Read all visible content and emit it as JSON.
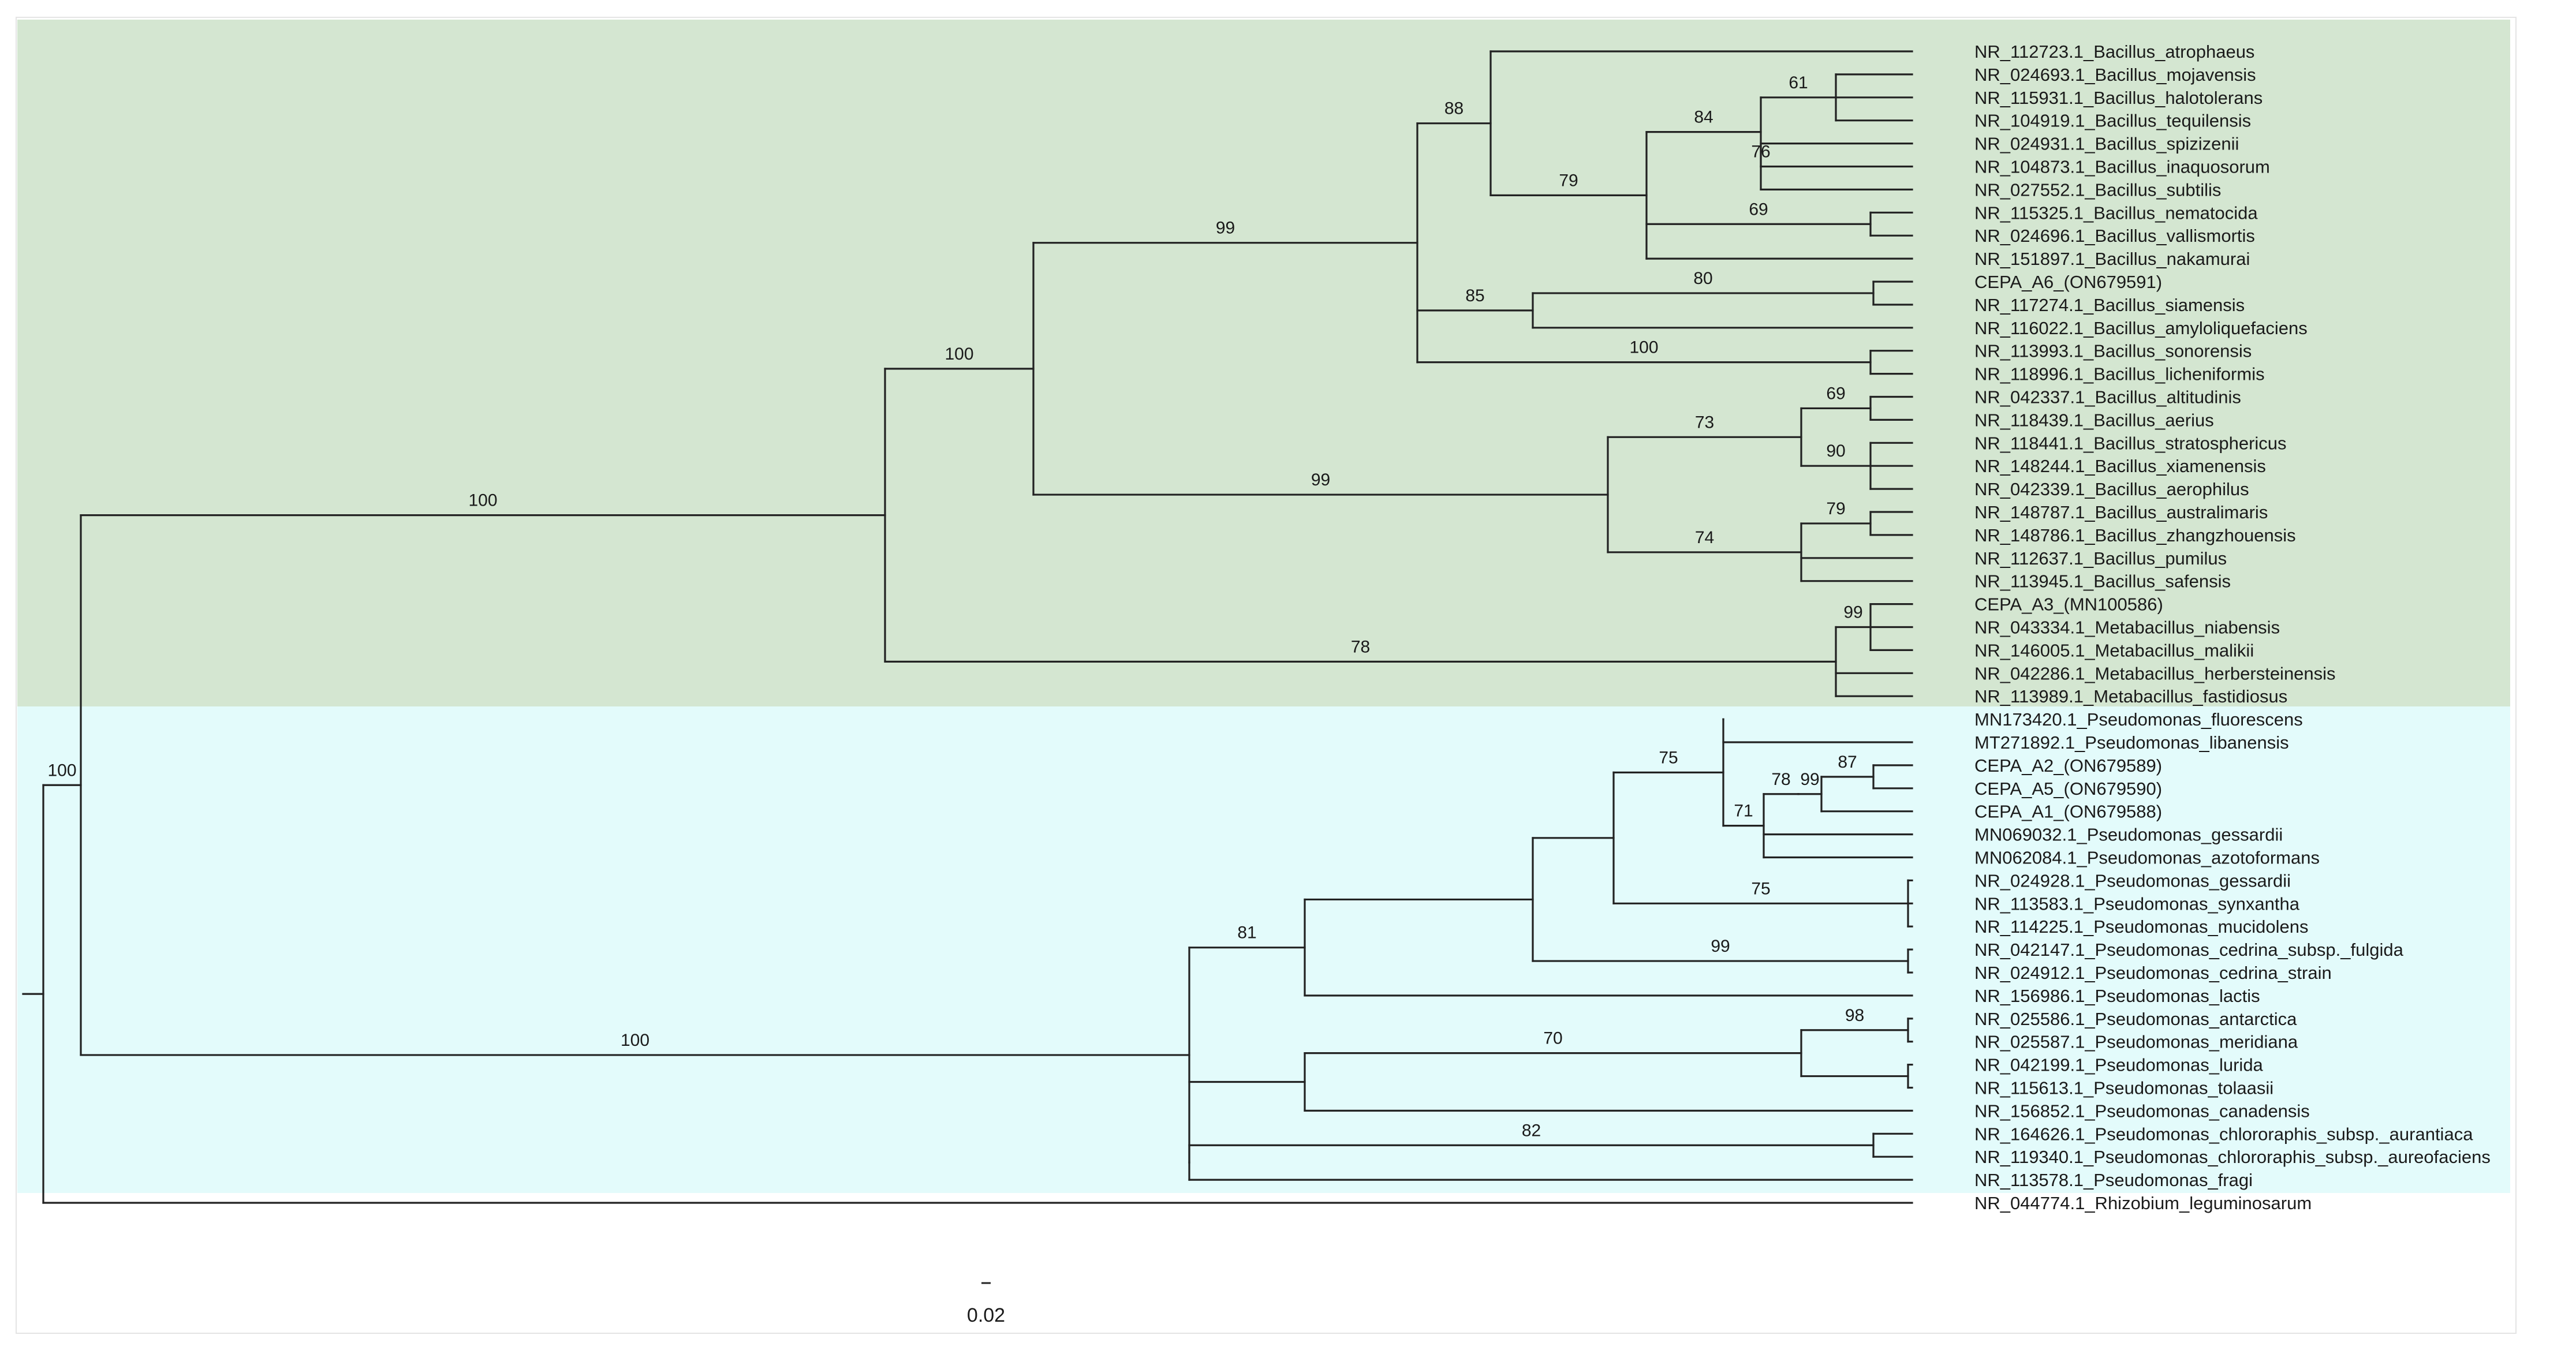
{
  "figure": {
    "type": "phylogenetic-tree",
    "scale_bar_label": "0.02",
    "clade_colors": {
      "bacillus": "#d4e6d1",
      "pseudomonas": "#e3fbfb"
    }
  },
  "taxa": [
    "NR_112723.1_Bacillus_atrophaeus",
    "NR_024693.1_Bacillus_mojavensis",
    "NR_115931.1_Bacillus_halotolerans",
    "NR_104919.1_Bacillus_tequilensis",
    "NR_024931.1_Bacillus_spizizenii",
    "NR_104873.1_Bacillus_inaquosorum",
    "NR_027552.1_Bacillus_subtilis",
    "NR_115325.1_Bacillus_nematocida",
    "NR_024696.1_Bacillus_vallismortis",
    "NR_151897.1_Bacillus_nakamurai",
    "CEPA_A6_(ON679591)",
    "NR_117274.1_Bacillus_siamensis",
    "NR_116022.1_Bacillus_amyloliquefaciens",
    "NR_113993.1_Bacillus_sonorensis",
    "NR_118996.1_Bacillus_licheniformis",
    "NR_042337.1_Bacillus_altitudinis",
    "NR_118439.1_Bacillus_aerius",
    "NR_118441.1_Bacillus_stratosphericus",
    "NR_148244.1_Bacillus_xiamenensis",
    "NR_042339.1_Bacillus_aerophilus",
    "NR_148787.1_Bacillus_australimaris",
    "NR_148786.1_Bacillus_zhangzhouensis",
    "NR_112637.1_Bacillus_pumilus",
    "NR_113945.1_Bacillus_safensis",
    "CEPA_A3_(MN100586)",
    "NR_043334.1_Metabacillus_niabensis",
    "NR_146005.1_Metabacillus_malikii",
    "NR_042286.1_Metabacillus_herbersteinensis",
    "NR_113989.1_Metabacillus_fastidiosus",
    "MN173420.1_Pseudomonas_fluorescens",
    "MT271892.1_Pseudomonas_libanensis",
    "CEPA_A2_(ON679589)",
    "CEPA_A5_(ON679590)",
    "CEPA_A1_(ON679588)",
    "MN069032.1_Pseudomonas_gessardii",
    "MN062084.1_Pseudomonas_azotoformans",
    "NR_024928.1_Pseudomonas_gessardii",
    "NR_113583.1_Pseudomonas_synxantha",
    "NR_114225.1_Pseudomonas_mucidolens",
    "NR_042147.1_Pseudomonas_cedrina_subsp._fulgida",
    "NR_024912.1_Pseudomonas_cedrina_strain",
    "NR_156986.1_Pseudomonas_lactis",
    "NR_025586.1_Pseudomonas_antarctica",
    "NR_025587.1_Pseudomonas_meridiana",
    "NR_042199.1_Pseudomonas_lurida",
    "NR_115613.1_Pseudomonas_tolaasii",
    "NR_156852.1_Pseudomonas_canadensis",
    "NR_164626.1_Pseudomonas_chlororaphis_subsp._aurantiaca",
    "NR_119340.1_Pseudomonas_chlororaphis_subsp._aureofaciens",
    "NR_113578.1_Pseudomonas_fragi",
    "NR_044774.1_Rhizobium_leguminosarum"
  ],
  "bootstrap_values": [
    "61",
    "84",
    "76",
    "69",
    "79",
    "88",
    "80",
    "85",
    "100",
    "99",
    "69",
    "90",
    "73",
    "79",
    "74",
    "99",
    "100",
    "99",
    "78",
    "100",
    "100",
    "78",
    "87",
    "99",
    "71",
    "75",
    "75",
    "99",
    "81",
    "98",
    "70",
    "82",
    "100"
  ]
}
